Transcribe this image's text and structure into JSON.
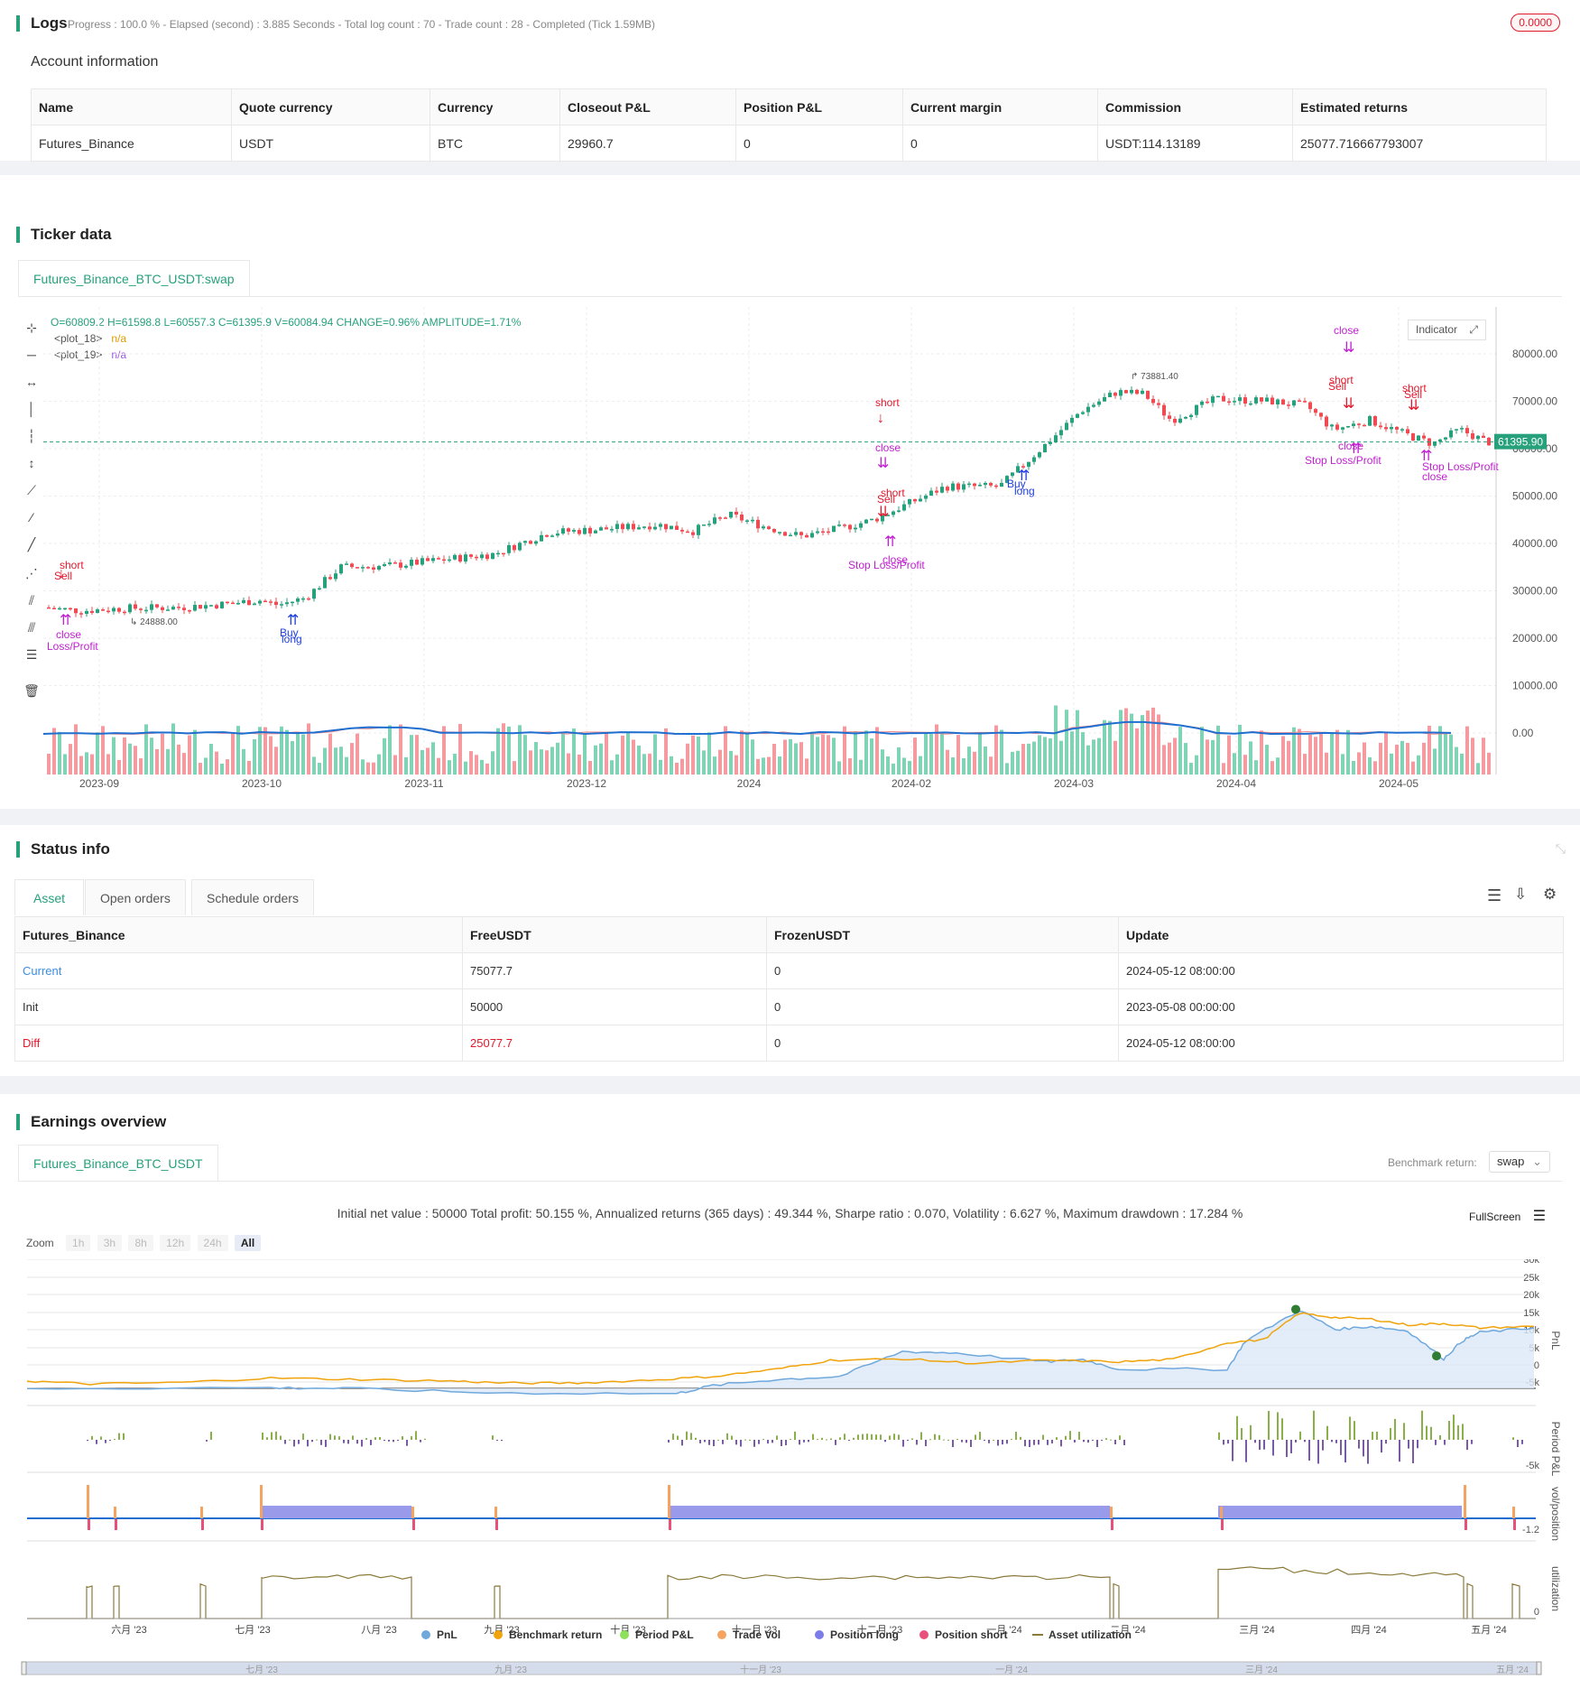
{
  "logs": {
    "title": "Logs",
    "summary": "Progress : 100.0 % - Elapsed (second) : 3.885  Seconds - Total log count : 70 - Trade count : 28 - Completed (Tick 1.59MB)",
    "badge": "0.0000",
    "account_title": "Account information",
    "columns": [
      "Name",
      "Quote currency",
      "Currency",
      "Closeout P&L",
      "Position P&L",
      "Current margin",
      "Commission",
      "Estimated returns"
    ],
    "row": [
      "Futures_Binance",
      "USDT",
      "BTC",
      "29960.7",
      "0",
      "0",
      "USDT:114.13189",
      "25077.716667793007"
    ]
  },
  "ticker": {
    "title": "Ticker data",
    "tab": "Futures_Binance_BTC_USDT:swap",
    "ohlc": "O=60809.2 H=61598.8 L=60557.3 C=61395.9 V=60084.94 CHANGE=0.96% AMPLITUDE=1.71%",
    "plot18": "<plot_18>",
    "plot19": "<plot_19>",
    "na": "n/a",
    "indicator_btn": "Indicator",
    "last_price": "61395.90",
    "high_mark": "73881.40",
    "low_mark": "24888.00",
    "y_ticks": [
      "80000.00",
      "70000.00",
      "60000.00",
      "50000.00",
      "40000.00",
      "30000.00",
      "20000.00",
      "10000.00",
      "0.00"
    ],
    "x_ticks": [
      "2023-09",
      "2023-10",
      "2023-11",
      "2023-12",
      "2024",
      "2024-02",
      "2024-03",
      "2024-04",
      "2024-05"
    ],
    "annotations": [
      {
        "text": "short",
        "color": "#e0192c"
      },
      {
        "text": "Sell",
        "color": "#e0192c"
      },
      {
        "text": "close",
        "color": "#c020d0"
      },
      {
        "text": "Loss/Profit",
        "color": "#c020d0"
      },
      {
        "text": "Buy",
        "color": "#2040e0"
      },
      {
        "text": "long",
        "color": "#2040e0"
      },
      {
        "text": "Stop Loss/Profit",
        "color": "#c020d0"
      }
    ]
  },
  "status": {
    "title": "Status info",
    "tabs": [
      "Asset",
      "Open orders",
      "Schedule orders"
    ],
    "columns": [
      "Futures_Binance",
      "FreeUSDT",
      "FrozenUSDT",
      "Update"
    ],
    "rows": [
      [
        "Current",
        "75077.7",
        "0",
        "2024-05-12 08:00:00"
      ],
      [
        "Init",
        "50000",
        "0",
        "2023-05-08 00:00:00"
      ],
      [
        "Diff",
        "25077.7",
        "0",
        "2024-05-12 08:00:00"
      ]
    ]
  },
  "earnings": {
    "title": "Earnings overview",
    "tab": "Futures_Binance_BTC_USDT",
    "benchmark_label": "Benchmark return:",
    "benchmark_value": "swap",
    "summary": "Initial net value : 50000 Total profit: 50.155 %, Annualized returns (365 days) : 49.344 %, Sharpe ratio : 0.070, Volatility : 6.627 %, Maximum drawdown : 17.284 %",
    "fullscreen": "FullScreen",
    "zoom_label": "Zoom",
    "zoom_buttons": [
      "1h",
      "3h",
      "8h",
      "12h",
      "24h",
      "All"
    ],
    "pnl_ticks": [
      "30k",
      "25k",
      "20k",
      "15k",
      "10k",
      "5k",
      "0",
      "-5k"
    ],
    "axis_labels": [
      "PnL",
      "Period P&L",
      "vol/position",
      "utilization"
    ],
    "period_tick": "-5k",
    "vol_tick": "-1.2",
    "util_tick": "0",
    "x_ticks": [
      "六月 '23",
      "七月 '23",
      "八月 '23",
      "九月 '23",
      "十月 '23",
      "十一月 '23",
      "十二月 '23",
      "一月 '24",
      "二月 '24",
      "三月 '24",
      "四月 '24",
      "五月 '24"
    ],
    "legend": [
      {
        "label": "PnL",
        "color": "#6fa8dc"
      },
      {
        "label": "Benchmark return",
        "color": "#f0a30a"
      },
      {
        "label": "Period P&L",
        "color": "#8de05a"
      },
      {
        "label": "Trade Vol",
        "color": "#f4a460"
      },
      {
        "label": "Position long",
        "color": "#7b7bea"
      },
      {
        "label": "Position short",
        "color": "#e8507a"
      },
      {
        "label": "Asset utilization",
        "color": "#8b7a3a"
      }
    ],
    "nav_ticks": [
      "七月 '23",
      "九月 '23",
      "十一月 '23",
      "一月 '24",
      "三月 '24",
      "五月 '24"
    ]
  }
}
